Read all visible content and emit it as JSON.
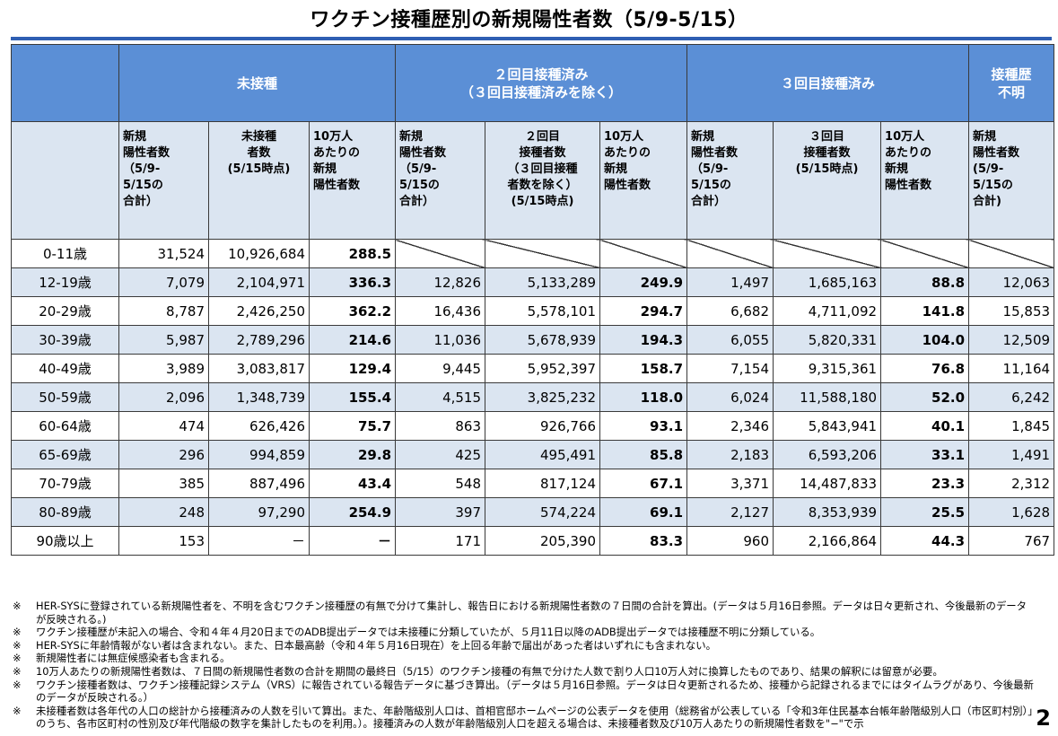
{
  "title": "ワクチン接種歴別の新規陽性者数（5/9-5/15）",
  "groups": {
    "unvaccinated": "未接種",
    "two_dose_line1": "２回目接種済み",
    "two_dose_line2": "（３回目接種済みを除く）",
    "three_dose": "３回目接種済み",
    "unknown_line1": "接種歴",
    "unknown_line2": "不明"
  },
  "subheaders": [
    [
      "新規",
      "陽性者数",
      "（5/9-",
      "5/15の",
      "合計）"
    ],
    [
      "未接種",
      "者数",
      "(5/15時点)"
    ],
    [
      "10万人",
      "あたりの",
      "新規",
      "陽性者数"
    ],
    [
      "新規",
      "陽性者数",
      "（5/9-",
      "5/15の",
      "合計）"
    ],
    [
      "２回目",
      "接種者数",
      "（３回目接種",
      "者数を除く）",
      "(5/15時点)"
    ],
    [
      "10万人",
      "あたりの",
      "新規",
      "陽性者数"
    ],
    [
      "新規",
      "陽性者数",
      "（5/9-",
      "5/15の",
      "合計）"
    ],
    [
      "３回目",
      "接種者数",
      "(5/15時点)"
    ],
    [
      "10万人",
      "あたりの",
      "新規",
      "陽性者数"
    ],
    [
      "新規",
      "陽性者数",
      "(5/9-",
      "5/15の",
      "合計)"
    ]
  ],
  "rows": [
    {
      "age": "0-11歳",
      "cells": [
        "31,524",
        "10,926,684",
        "288.5",
        null,
        null,
        null,
        null,
        null,
        null,
        null
      ]
    },
    {
      "age": "12-19歳",
      "cells": [
        "7,079",
        "2,104,971",
        "336.3",
        "12,826",
        "5,133,289",
        "249.9",
        "1,497",
        "1,685,163",
        "88.8",
        "12,063"
      ]
    },
    {
      "age": "20-29歳",
      "cells": [
        "8,787",
        "2,426,250",
        "362.2",
        "16,436",
        "5,578,101",
        "294.7",
        "6,682",
        "4,711,092",
        "141.8",
        "15,853"
      ]
    },
    {
      "age": "30-39歳",
      "cells": [
        "5,987",
        "2,789,296",
        "214.6",
        "11,036",
        "5,678,939",
        "194.3",
        "6,055",
        "5,820,331",
        "104.0",
        "12,509"
      ]
    },
    {
      "age": "40-49歳",
      "cells": [
        "3,989",
        "3,083,817",
        "129.4",
        "9,445",
        "5,952,397",
        "158.7",
        "7,154",
        "9,315,361",
        "76.8",
        "11,164"
      ]
    },
    {
      "age": "50-59歳",
      "cells": [
        "2,096",
        "1,348,739",
        "155.4",
        "4,515",
        "3,825,232",
        "118.0",
        "6,024",
        "11,588,180",
        "52.0",
        "6,242"
      ]
    },
    {
      "age": "60-64歳",
      "cells": [
        "474",
        "626,426",
        "75.7",
        "863",
        "926,766",
        "93.1",
        "2,346",
        "5,843,941",
        "40.1",
        "1,845"
      ]
    },
    {
      "age": "65-69歳",
      "cells": [
        "296",
        "994,859",
        "29.8",
        "425",
        "495,491",
        "85.8",
        "2,183",
        "6,593,206",
        "33.1",
        "1,491"
      ]
    },
    {
      "age": "70-79歳",
      "cells": [
        "385",
        "887,496",
        "43.4",
        "548",
        "817,124",
        "67.1",
        "3,371",
        "14,487,833",
        "23.3",
        "2,312"
      ]
    },
    {
      "age": "80-89歳",
      "cells": [
        "248",
        "97,290",
        "254.9",
        "397",
        "574,224",
        "69.1",
        "2,127",
        "8,353,939",
        "25.5",
        "1,628"
      ]
    },
    {
      "age": "90歳以上",
      "cells": [
        "153",
        "－",
        "－",
        "171",
        "205,390",
        "83.3",
        "960",
        "2,166,864",
        "44.3",
        "767"
      ]
    }
  ],
  "notes": [
    {
      "mark": "※",
      "text": "HER-SYSに登録されている新規陽性者を、不明を含むワクチン接種歴の有無で分けて集計し、報告日における新規陽性者数の７日間の合計を算出。(データは５月16日参照。データは日々更新され、今後最新のデータが反映される。)"
    },
    {
      "mark": "※",
      "text": "ワクチン接種歴が未記入の場合、令和４年４月20日までのADB提出データでは未接種に分類していたが、５月11日以降のADB提出データでは接種歴不明に分類している。"
    },
    {
      "mark": "※",
      "text": "HER-SYSに年齢情報がない者は含まれない。また、日本最高齢（令和４年５月16日現在）を上回る年齢で届出があった者はいずれにも含まれない。"
    },
    {
      "mark": "※",
      "text": "新規陽性者には無症候感染者も含まれる。"
    },
    {
      "mark": "※",
      "text": "10万人あたりの新規陽性者数は、７日間の新規陽性者数の合計を期間の最終日（5/15）のワクチン接種の有無で分けた人数で割り人口10万人対に換算したものであり、結果の解釈には留意が必要。"
    },
    {
      "mark": "※",
      "text": "ワクチン接種者数は、ワクチン接種記録システム（VRS）に報告されている報告データに基づき算出。（データは５月16日参照。データは日々更新されるため、接種から記録されるまでにはタイムラグがあり、今後最新のデータが反映される。）"
    },
    {
      "mark": "※",
      "text": "未接種者数は各年代の人口の総計から接種済みの人数を引いて算出。また、年齢階級別人口は、首相官邸ホームページの公表データを使用（総務省が公表している「令和3年住民基本台帳年齢階級別人口（市区町村別）」のうち、各市区町村の性別及び年代階級の数字を集計したものを利用。）。接種済みの人数が年齢階級別人口を超える場合は、未接種者数及び10万人あたりの新規陽性者数を\"−\"で示"
    }
  ],
  "page_number": "2",
  "colors": {
    "header_blue": "#5b8fd6",
    "rule_blue": "#2f5fb3",
    "band": "#dbe5f1"
  }
}
